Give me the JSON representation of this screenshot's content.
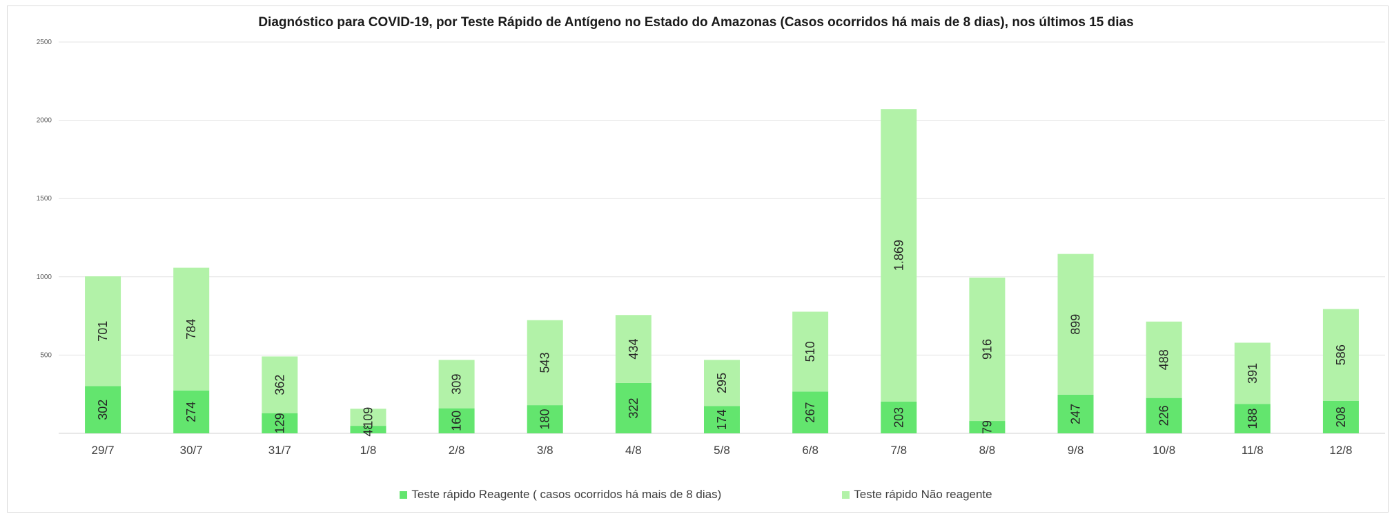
{
  "chart_data": {
    "type": "bar",
    "stacked": true,
    "title": "Diagnóstico para COVID-19, por  Teste Rápido de Antígeno no Estado do Amazonas (Casos ocorridos há mais de 8 dias), nos últimos 15 dias",
    "xlabel": "",
    "ylabel": "",
    "ylim": [
      0,
      2500
    ],
    "yticks": [
      "2500",
      "2000",
      "1500",
      "1000",
      "500"
    ],
    "grid": true,
    "legend_position": "bottom",
    "categories": [
      "29/7",
      "30/7",
      "31/7",
      "1/8",
      "2/8",
      "3/8",
      "4/8",
      "5/8",
      "6/8",
      "7/8",
      "8/8",
      "9/8",
      "10/8",
      "11/8",
      "12/8"
    ],
    "series": [
      {
        "name": "Teste rápido Reagente ( casos ocorridos há mais de 8 dias)",
        "color": "#63e56e",
        "values": [
          302,
          274,
          129,
          48,
          160,
          180,
          322,
          174,
          267,
          203,
          79,
          247,
          226,
          188,
          208
        ],
        "labels": [
          "302",
          "274",
          "129",
          "48",
          "160",
          "180",
          "322",
          "174",
          "267",
          "203",
          "79",
          "247",
          "226",
          "188",
          "208"
        ]
      },
      {
        "name": "Teste rápido Não reagente",
        "color": "#b2f2a8",
        "values": [
          701,
          784,
          362,
          109,
          309,
          543,
          434,
          295,
          510,
          1869,
          916,
          899,
          488,
          391,
          586
        ],
        "labels": [
          "701",
          "784",
          "362",
          "109",
          "309",
          "543",
          "434",
          "295",
          "510",
          "1.869",
          "916",
          "899",
          "488",
          "391",
          "586"
        ]
      }
    ]
  }
}
